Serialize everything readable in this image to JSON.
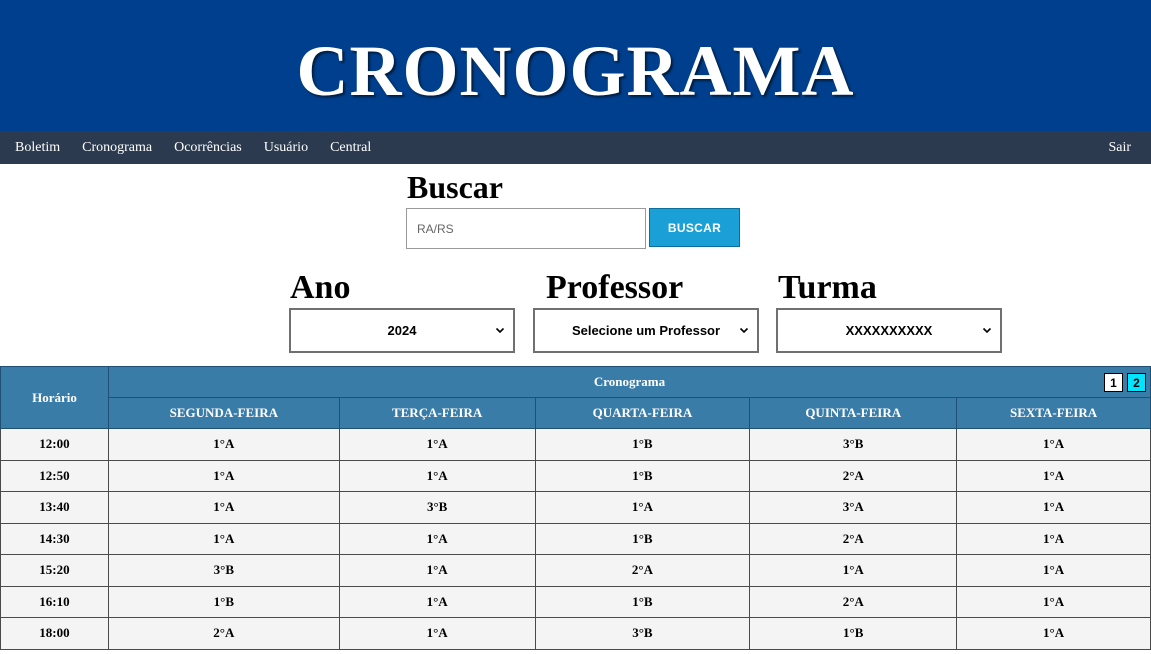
{
  "header": {
    "title": "CRONOGRAMA"
  },
  "nav": {
    "items": [
      "Boletim",
      "Cronograma",
      "Ocorrências",
      "Usuário",
      "Central"
    ],
    "logout": "Sair"
  },
  "search": {
    "title": "Buscar",
    "placeholder": "RA/RS",
    "value": "",
    "button_label": "BUSCAR"
  },
  "filters": {
    "year": {
      "label": "Ano",
      "selected": "2024"
    },
    "teacher": {
      "label": "Professor",
      "selected": "Selecione um Professor"
    },
    "class": {
      "label": "Turma",
      "selected": "XXXXXXXXXX"
    }
  },
  "schedule": {
    "time_header": "Horário",
    "title": "Cronograma",
    "pages": [
      "1",
      "2"
    ],
    "active_page": "2",
    "days": [
      "SEGUNDA-FEIRA",
      "TERÇA-FEIRA",
      "QUARTA-FEIRA",
      "QUINTA-FEIRA",
      "SEXTA-FEIRA"
    ],
    "rows": [
      {
        "time": "12:00",
        "cells": [
          "1°A",
          "1°A",
          "1°B",
          "3°B",
          "1°A"
        ]
      },
      {
        "time": "12:50",
        "cells": [
          "1°A",
          "1°A",
          "1°B",
          "2°A",
          "1°A"
        ]
      },
      {
        "time": "13:40",
        "cells": [
          "1°A",
          "3°B",
          "1°A",
          "3°A",
          "1°A"
        ]
      },
      {
        "time": "14:30",
        "cells": [
          "1°A",
          "1°A",
          "1°B",
          "2°A",
          "1°A"
        ]
      },
      {
        "time": "15:20",
        "cells": [
          "3°B",
          "1°A",
          "2°A",
          "1°A",
          "1°A"
        ]
      },
      {
        "time": "16:10",
        "cells": [
          "1°B",
          "1°A",
          "1°B",
          "2°A",
          "1°A"
        ]
      },
      {
        "time": "18:00",
        "cells": [
          "2°A",
          "1°A",
          "3°B",
          "1°B",
          "1°A"
        ]
      }
    ]
  },
  "colors": {
    "banner": "#003f8d",
    "navbar": "#2b3a4e",
    "table_header": "#3a7ca8",
    "search_button": "#1a9fd6",
    "active_page": "#00e5ff"
  }
}
